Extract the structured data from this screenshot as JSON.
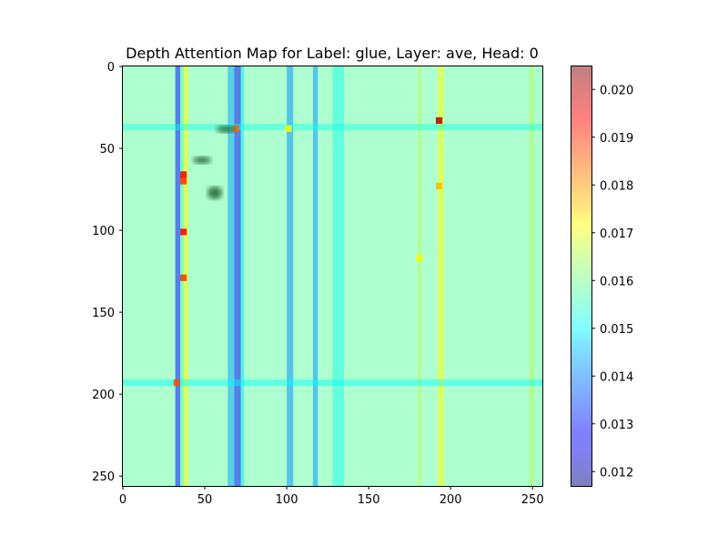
{
  "chart_data": {
    "type": "heatmap",
    "title": "Depth Attention Map for Label: glue, Layer: ave, Head: 0",
    "xlabel": "",
    "ylabel": "",
    "xlim": [
      0,
      256
    ],
    "ylim": [
      256,
      0
    ],
    "x_ticks": [
      0,
      50,
      100,
      150,
      200,
      250
    ],
    "y_ticks": [
      0,
      50,
      100,
      150,
      200,
      250
    ],
    "colormap": "jet",
    "alpha": 0.5,
    "colorbar": {
      "range": [
        0.0117,
        0.0205
      ],
      "ticks": [
        0.012,
        0.013,
        0.014,
        0.015,
        0.016,
        0.017,
        0.018,
        0.019,
        0.02
      ],
      "tick_labels": [
        "0.012",
        "0.013",
        "0.014",
        "0.015",
        "0.016",
        "0.017",
        "0.018",
        "0.019",
        "0.020"
      ]
    },
    "base_value": 0.0158,
    "column_bands": [
      {
        "x": [
          32,
          35
        ],
        "value": 0.0128
      },
      {
        "x": [
          35,
          37
        ],
        "value": 0.0156
      },
      {
        "x": [
          37,
          40
        ],
        "value": 0.0172
      },
      {
        "x": [
          64,
          68
        ],
        "value": 0.0142
      },
      {
        "x": [
          68,
          72
        ],
        "value": 0.0128
      },
      {
        "x": [
          72,
          74
        ],
        "value": 0.0148
      },
      {
        "x": [
          100,
          104
        ],
        "value": 0.014
      },
      {
        "x": [
          116,
          119
        ],
        "value": 0.014
      },
      {
        "x": [
          128,
          135
        ],
        "value": 0.0152
      },
      {
        "x": [
          180,
          182
        ],
        "value": 0.0166
      },
      {
        "x": [
          192,
          196
        ],
        "value": 0.0172
      },
      {
        "x": [
          248,
          251
        ],
        "value": 0.0165
      }
    ],
    "row_bands": [
      {
        "y": [
          35,
          39
        ],
        "value": 0.0152
      },
      {
        "y": [
          191,
          195
        ],
        "value": 0.015
      }
    ],
    "hot_cells": [
      {
        "x": 193,
        "y": 33,
        "value": 0.02
      },
      {
        "x": 37,
        "y": 66,
        "value": 0.0195
      },
      {
        "x": 37,
        "y": 70,
        "value": 0.019
      },
      {
        "x": 37,
        "y": 101,
        "value": 0.0195
      },
      {
        "x": 37,
        "y": 129,
        "value": 0.019
      },
      {
        "x": 33,
        "y": 193,
        "value": 0.0188
      },
      {
        "x": 69,
        "y": 38,
        "value": 0.0185
      },
      {
        "x": 193,
        "y": 73,
        "value": 0.0178
      },
      {
        "x": 181,
        "y": 117,
        "value": 0.0172
      },
      {
        "x": 101,
        "y": 38,
        "value": 0.0172
      }
    ]
  }
}
